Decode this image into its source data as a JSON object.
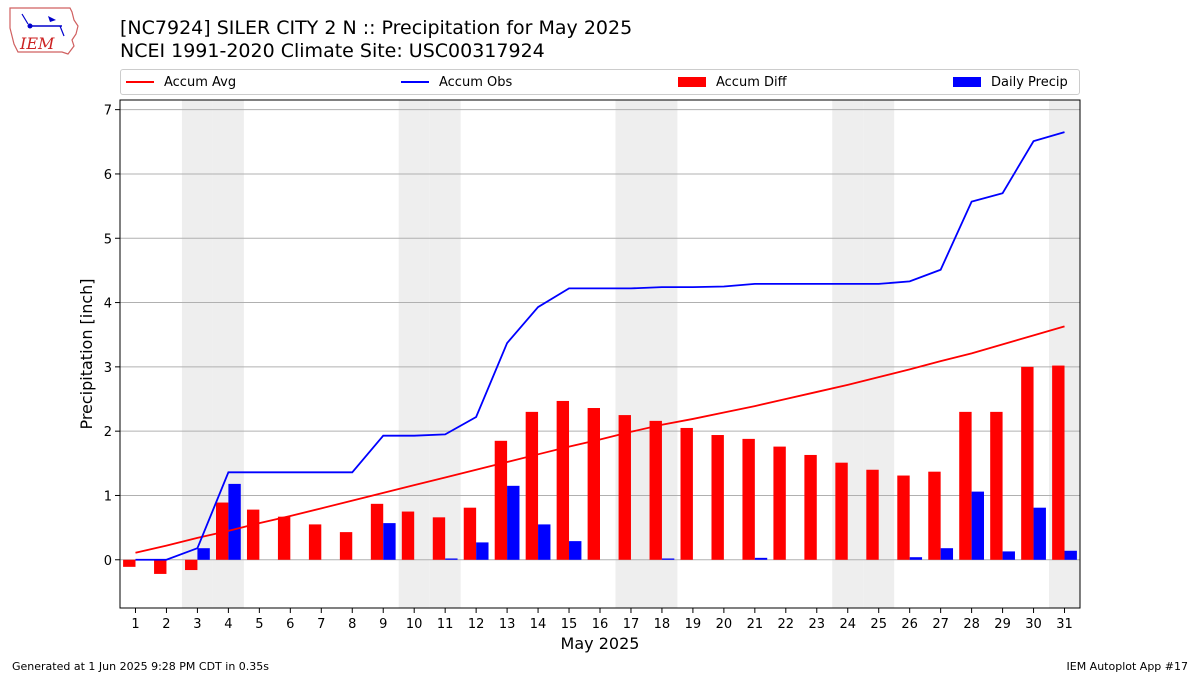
{
  "header": {
    "title_line1": "[NC7924] SILER CITY 2 N :: Precipitation for May 2025",
    "title_line2": "NCEI 1991-2020 Climate Site: USC00317924",
    "logo_text": "IEM"
  },
  "footer": {
    "generated": "Generated at 1 Jun 2025 9:28 PM CDT in 0.35s",
    "app": "IEM Autoplot App #17"
  },
  "colors": {
    "accum_avg": "#ff0000",
    "accum_obs": "#0000ff",
    "accum_diff": "#ff0000",
    "daily_precip": "#0000ff",
    "weekend_shade": "#eeeeee",
    "grid": "#b0b0b0"
  },
  "chart_data": {
    "type": "bar",
    "xlabel": "May 2025",
    "ylabel": "Precipitation [inch]",
    "xlim": [
      0.5,
      31.5
    ],
    "ylim": [
      -0.75,
      7.15
    ],
    "yticks": [
      0,
      1,
      2,
      3,
      4,
      5,
      6,
      7
    ],
    "grid": true,
    "legend_position": "top",
    "days": [
      1,
      2,
      3,
      4,
      5,
      6,
      7,
      8,
      9,
      10,
      11,
      12,
      13,
      14,
      15,
      16,
      17,
      18,
      19,
      20,
      21,
      22,
      23,
      24,
      25,
      26,
      27,
      28,
      29,
      30,
      31
    ],
    "weekend_days": [
      3,
      4,
      10,
      11,
      17,
      18,
      24,
      25,
      31
    ],
    "series": [
      {
        "name": "Accum Avg",
        "kind": "line",
        "values": [
          0.11,
          0.22,
          0.34,
          0.45,
          0.57,
          0.68,
          0.8,
          0.92,
          1.04,
          1.16,
          1.28,
          1.4,
          1.52,
          1.64,
          1.76,
          1.87,
          1.99,
          2.1,
          2.19,
          2.29,
          2.39,
          2.5,
          2.61,
          2.72,
          2.84,
          2.96,
          3.09,
          3.21,
          3.35,
          3.49,
          3.63
        ]
      },
      {
        "name": "Accum Obs",
        "kind": "line",
        "values": [
          0.0,
          0.0,
          0.18,
          1.36,
          1.36,
          1.36,
          1.36,
          1.36,
          1.93,
          1.93,
          1.95,
          2.22,
          3.37,
          3.93,
          4.22,
          4.22,
          4.22,
          4.24,
          4.24,
          4.25,
          4.29,
          4.29,
          4.29,
          4.29,
          4.29,
          4.33,
          4.51,
          5.57,
          5.7,
          6.51,
          6.65
        ]
      },
      {
        "name": "Accum Diff",
        "kind": "bar",
        "values": [
          -0.11,
          -0.22,
          -0.16,
          0.89,
          0.78,
          0.67,
          0.55,
          0.43,
          0.87,
          0.75,
          0.66,
          0.81,
          1.85,
          2.3,
          2.47,
          2.36,
          2.25,
          2.16,
          2.05,
          1.94,
          1.88,
          1.76,
          1.63,
          1.51,
          1.4,
          1.31,
          1.37,
          2.3,
          2.3,
          3.0,
          3.02
        ]
      },
      {
        "name": "Daily Precip",
        "kind": "bar",
        "values": [
          0.0,
          0.0,
          0.18,
          1.18,
          0.0,
          0.0,
          0.0,
          0.0,
          0.57,
          0.0,
          0.02,
          0.27,
          1.15,
          0.55,
          0.29,
          0.0,
          0.0,
          0.02,
          0.0,
          0.0,
          0.03,
          0.0,
          0.0,
          0.0,
          0.0,
          0.04,
          0.18,
          1.06,
          0.13,
          0.81,
          0.14
        ]
      }
    ]
  }
}
